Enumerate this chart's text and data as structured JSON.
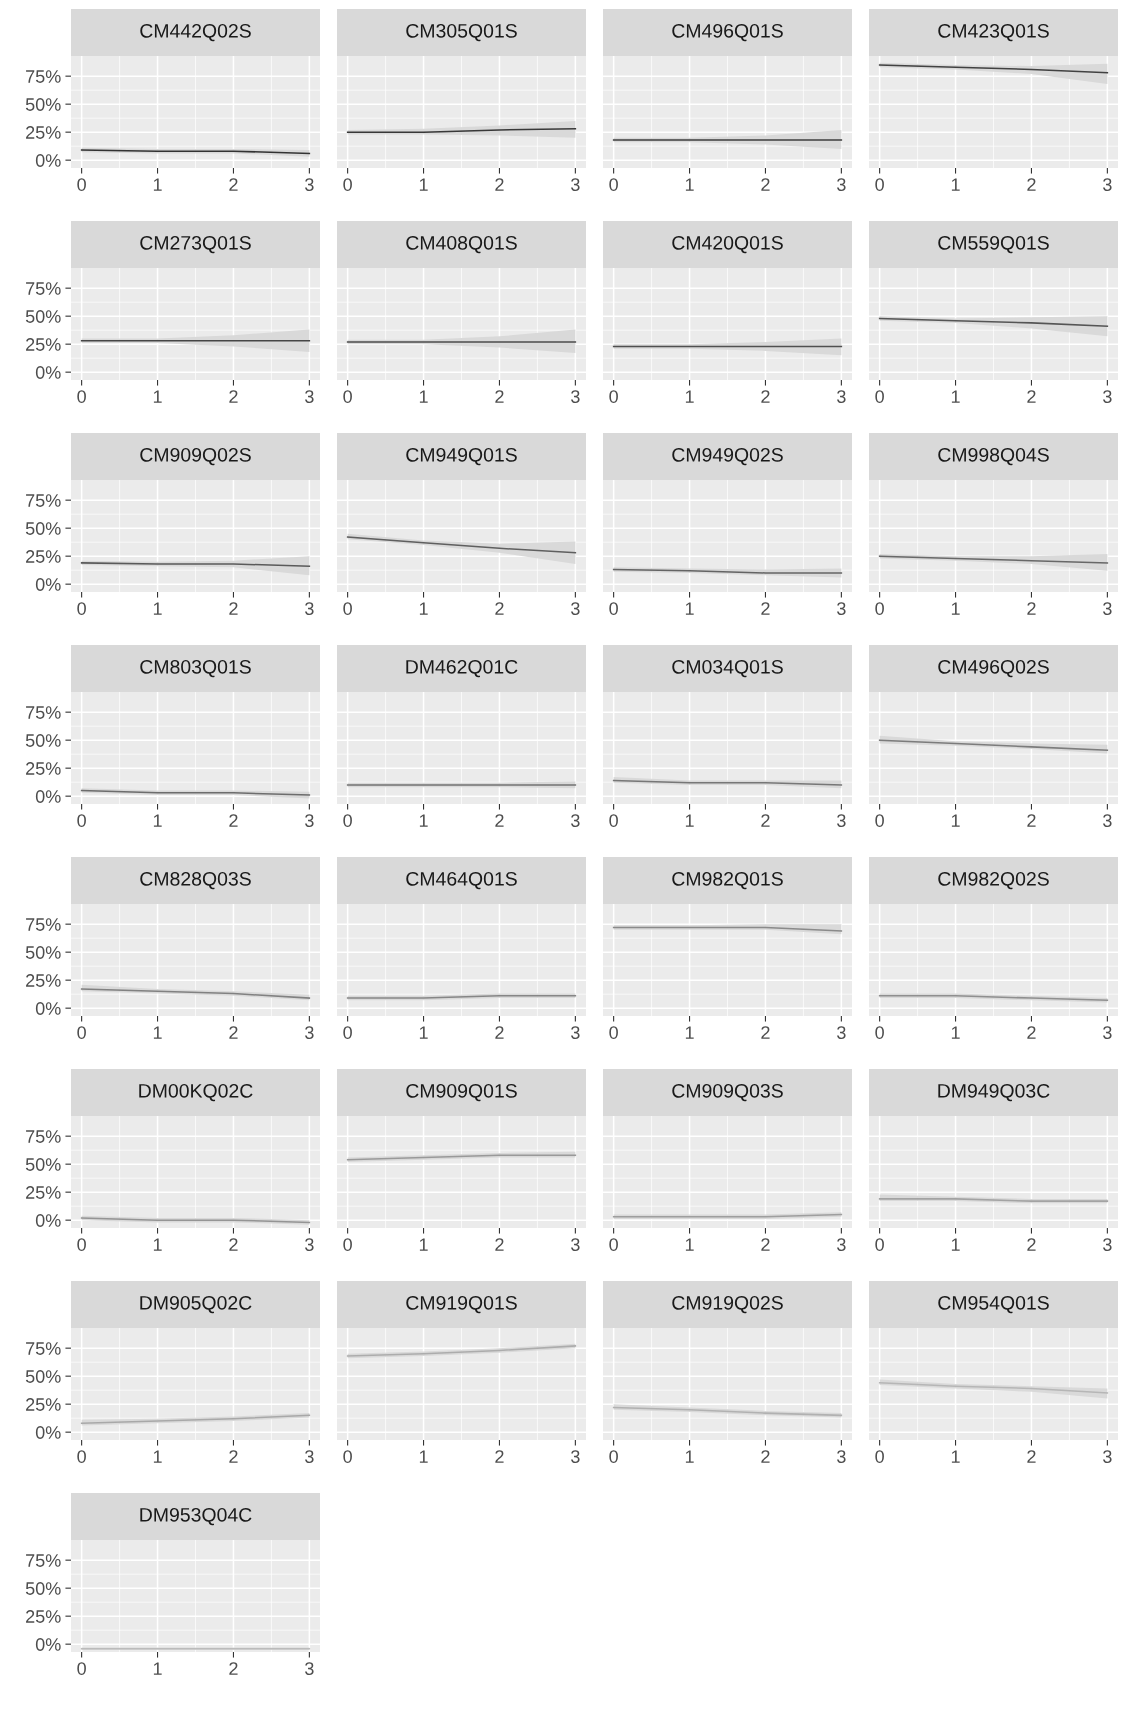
{
  "chart_data": [
    {
      "type": "line",
      "title": "CM442Q02S",
      "x": [
        0,
        1,
        2,
        3
      ],
      "series": [
        {
          "color": "#333333",
          "values": [
            0.09,
            0.08,
            0.08,
            0.06
          ],
          "lower": [
            0.07,
            0.06,
            0.06,
            0.03
          ],
          "upper": [
            0.11,
            0.1,
            0.1,
            0.09
          ]
        }
      ],
      "xlim": [
        -0.14,
        3.14
      ],
      "ylim": [
        -0.07,
        0.93
      ],
      "xticks": [
        0,
        1,
        2,
        3
      ],
      "yticks": [
        {
          "value": 0,
          "label": "0%"
        },
        {
          "value": 0.25,
          "label": "25%"
        },
        {
          "value": 0.5,
          "label": "50%"
        },
        {
          "value": 0.75,
          "label": "75%"
        }
      ],
      "grid": true
    },
    {
      "type": "line",
      "title": "CM305Q01S",
      "x": [
        0,
        1,
        2,
        3
      ],
      "series": [
        {
          "color": "#383838",
          "values": [
            0.25,
            0.25,
            0.27,
            0.28
          ],
          "lower": [
            0.23,
            0.23,
            0.22,
            0.2
          ],
          "upper": [
            0.27,
            0.28,
            0.31,
            0.35
          ]
        }
      ],
      "xlim": [
        -0.14,
        3.14
      ],
      "ylim": [
        -0.07,
        0.93
      ],
      "xticks": [
        0,
        1,
        2,
        3
      ],
      "yticks": [
        0,
        0.25,
        0.5,
        0.75
      ],
      "grid": true,
      "tick_labels": "x"
    },
    {
      "type": "line",
      "title": "CM496Q01S",
      "x": [
        0,
        1,
        2,
        3
      ],
      "series": [
        {
          "color": "#3d3d3d",
          "values": [
            0.18,
            0.18,
            0.18,
            0.18
          ],
          "lower": [
            0.16,
            0.16,
            0.14,
            0.1
          ],
          "upper": [
            0.2,
            0.2,
            0.22,
            0.27
          ]
        }
      ],
      "xlim": [
        -0.14,
        3.14
      ],
      "ylim": [
        -0.07,
        0.93
      ],
      "xticks": [
        0,
        1,
        2,
        3
      ],
      "yticks": [
        0,
        0.25,
        0.5,
        0.75
      ],
      "grid": true,
      "tick_labels": "x"
    },
    {
      "type": "line",
      "title": "CM423Q01S",
      "x": [
        0,
        1,
        2,
        3
      ],
      "series": [
        {
          "color": "#424242",
          "values": [
            0.85,
            0.83,
            0.81,
            0.78
          ],
          "lower": [
            0.83,
            0.81,
            0.77,
            0.68
          ],
          "upper": [
            0.87,
            0.85,
            0.84,
            0.86
          ]
        }
      ],
      "xlim": [
        -0.14,
        3.14
      ],
      "ylim": [
        -0.07,
        0.93
      ],
      "xticks": [
        0,
        1,
        2,
        3
      ],
      "yticks": [
        0,
        0.25,
        0.5,
        0.75
      ],
      "grid": true,
      "tick_labels": "x"
    },
    {
      "type": "line",
      "title": "CM273Q01S",
      "x": [
        0,
        1,
        2,
        3
      ],
      "series": [
        {
          "color": "#464646",
          "values": [
            0.28,
            0.28,
            0.28,
            0.28
          ],
          "lower": [
            0.26,
            0.26,
            0.23,
            0.18
          ],
          "upper": [
            0.3,
            0.3,
            0.33,
            0.38
          ]
        }
      ],
      "xlim": [
        -0.14,
        3.14
      ],
      "ylim": [
        -0.07,
        0.93
      ],
      "xticks": [
        0,
        1,
        2,
        3
      ],
      "yticks": [
        {
          "value": 0,
          "label": "0%"
        },
        {
          "value": 0.25,
          "label": "25%"
        },
        {
          "value": 0.5,
          "label": "50%"
        },
        {
          "value": 0.75,
          "label": "75%"
        }
      ],
      "grid": true
    },
    {
      "type": "line",
      "title": "CM408Q01S",
      "x": [
        0,
        1,
        2,
        3
      ],
      "series": [
        {
          "color": "#4b4b4b",
          "values": [
            0.27,
            0.27,
            0.27,
            0.27
          ],
          "lower": [
            0.25,
            0.25,
            0.22,
            0.17
          ],
          "upper": [
            0.29,
            0.29,
            0.32,
            0.38
          ]
        }
      ],
      "xlim": [
        -0.14,
        3.14
      ],
      "ylim": [
        -0.07,
        0.93
      ],
      "xticks": [
        0,
        1,
        2,
        3
      ],
      "yticks": [
        0,
        0.25,
        0.5,
        0.75
      ],
      "grid": true,
      "tick_labels": "x"
    },
    {
      "type": "line",
      "title": "CM420Q01S",
      "x": [
        0,
        1,
        2,
        3
      ],
      "series": [
        {
          "color": "#505050",
          "values": [
            0.23,
            0.23,
            0.23,
            0.23
          ],
          "lower": [
            0.21,
            0.21,
            0.19,
            0.15
          ],
          "upper": [
            0.25,
            0.25,
            0.27,
            0.3
          ]
        }
      ],
      "xlim": [
        -0.14,
        3.14
      ],
      "ylim": [
        -0.07,
        0.93
      ],
      "xticks": [
        0,
        1,
        2,
        3
      ],
      "yticks": [
        0,
        0.25,
        0.5,
        0.75
      ],
      "grid": true,
      "tick_labels": "x"
    },
    {
      "type": "line",
      "title": "CM559Q01S",
      "x": [
        0,
        1,
        2,
        3
      ],
      "series": [
        {
          "color": "#555555",
          "values": [
            0.48,
            0.46,
            0.44,
            0.41
          ],
          "lower": [
            0.46,
            0.44,
            0.39,
            0.32
          ],
          "upper": [
            0.5,
            0.48,
            0.49,
            0.5
          ]
        }
      ],
      "xlim": [
        -0.14,
        3.14
      ],
      "ylim": [
        -0.07,
        0.93
      ],
      "xticks": [
        0,
        1,
        2,
        3
      ],
      "yticks": [
        0,
        0.25,
        0.5,
        0.75
      ],
      "grid": true,
      "tick_labels": "x"
    },
    {
      "type": "line",
      "title": "CM909Q02S",
      "x": [
        0,
        1,
        2,
        3
      ],
      "series": [
        {
          "color": "#5a5a5a",
          "values": [
            0.19,
            0.18,
            0.18,
            0.16
          ],
          "lower": [
            0.17,
            0.16,
            0.15,
            0.08
          ],
          "upper": [
            0.21,
            0.2,
            0.21,
            0.25
          ]
        }
      ],
      "xlim": [
        -0.14,
        3.14
      ],
      "ylim": [
        -0.07,
        0.93
      ],
      "xticks": [
        0,
        1,
        2,
        3
      ],
      "yticks": [
        {
          "value": 0,
          "label": "0%"
        },
        {
          "value": 0.25,
          "label": "25%"
        },
        {
          "value": 0.5,
          "label": "50%"
        },
        {
          "value": 0.75,
          "label": "75%"
        }
      ],
      "grid": true
    },
    {
      "type": "line",
      "title": "CM949Q01S",
      "x": [
        0,
        1,
        2,
        3
      ],
      "series": [
        {
          "color": "#5f5f5f",
          "values": [
            0.42,
            0.37,
            0.32,
            0.28
          ],
          "lower": [
            0.4,
            0.35,
            0.28,
            0.18
          ],
          "upper": [
            0.45,
            0.39,
            0.36,
            0.38
          ]
        }
      ],
      "xlim": [
        -0.14,
        3.14
      ],
      "ylim": [
        -0.07,
        0.93
      ],
      "xticks": [
        0,
        1,
        2,
        3
      ],
      "yticks": [
        0,
        0.25,
        0.5,
        0.75
      ],
      "grid": true,
      "tick_labels": "x"
    },
    {
      "type": "line",
      "title": "CM949Q02S",
      "x": [
        0,
        1,
        2,
        3
      ],
      "series": [
        {
          "color": "#646464",
          "values": [
            0.13,
            0.12,
            0.1,
            0.1
          ],
          "lower": [
            0.11,
            0.1,
            0.08,
            0.06
          ],
          "upper": [
            0.15,
            0.14,
            0.13,
            0.14
          ]
        }
      ],
      "xlim": [
        -0.14,
        3.14
      ],
      "ylim": [
        -0.07,
        0.93
      ],
      "xticks": [
        0,
        1,
        2,
        3
      ],
      "yticks": [
        0,
        0.25,
        0.5,
        0.75
      ],
      "grid": true,
      "tick_labels": "x"
    },
    {
      "type": "line",
      "title": "CM998Q04S",
      "x": [
        0,
        1,
        2,
        3
      ],
      "series": [
        {
          "color": "#686868",
          "values": [
            0.25,
            0.23,
            0.21,
            0.19
          ],
          "lower": [
            0.23,
            0.21,
            0.18,
            0.12
          ],
          "upper": [
            0.27,
            0.25,
            0.25,
            0.27
          ]
        }
      ],
      "xlim": [
        -0.14,
        3.14
      ],
      "ylim": [
        -0.07,
        0.93
      ],
      "xticks": [
        0,
        1,
        2,
        3
      ],
      "yticks": [
        0,
        0.25,
        0.5,
        0.75
      ],
      "grid": true,
      "tick_labels": "x"
    },
    {
      "type": "line",
      "title": "CM803Q01S",
      "x": [
        0,
        1,
        2,
        3
      ],
      "series": [
        {
          "color": "#6d6d6d",
          "values": [
            0.05,
            0.03,
            0.03,
            0.01
          ],
          "lower": [
            0.03,
            0.01,
            0.01,
            -0.02
          ],
          "upper": [
            0.07,
            0.05,
            0.05,
            0.04
          ]
        }
      ],
      "xlim": [
        -0.14,
        3.14
      ],
      "ylim": [
        -0.07,
        0.93
      ],
      "xticks": [
        0,
        1,
        2,
        3
      ],
      "yticks": [
        {
          "value": 0,
          "label": "0%"
        },
        {
          "value": 0.25,
          "label": "25%"
        },
        {
          "value": 0.5,
          "label": "50%"
        },
        {
          "value": 0.75,
          "label": "75%"
        }
      ],
      "grid": true
    },
    {
      "type": "line",
      "title": "DM462Q01C",
      "x": [
        0,
        1,
        2,
        3
      ],
      "series": [
        {
          "color": "#727272",
          "values": [
            0.1,
            0.1,
            0.1,
            0.1
          ],
          "lower": [
            0.08,
            0.08,
            0.08,
            0.07
          ],
          "upper": [
            0.12,
            0.12,
            0.12,
            0.13
          ]
        }
      ],
      "xlim": [
        -0.14,
        3.14
      ],
      "ylim": [
        -0.07,
        0.93
      ],
      "xticks": [
        0,
        1,
        2,
        3
      ],
      "yticks": [
        0,
        0.25,
        0.5,
        0.75
      ],
      "grid": true,
      "tick_labels": "x"
    },
    {
      "type": "line",
      "title": "CM034Q01S",
      "x": [
        0,
        1,
        2,
        3
      ],
      "series": [
        {
          "color": "#777777",
          "values": [
            0.14,
            0.12,
            0.12,
            0.1
          ],
          "lower": [
            0.12,
            0.1,
            0.1,
            0.07
          ],
          "upper": [
            0.17,
            0.14,
            0.14,
            0.14
          ]
        }
      ],
      "xlim": [
        -0.14,
        3.14
      ],
      "ylim": [
        -0.07,
        0.93
      ],
      "xticks": [
        0,
        1,
        2,
        3
      ],
      "yticks": [
        0,
        0.25,
        0.5,
        0.75
      ],
      "grid": true,
      "tick_labels": "x"
    },
    {
      "type": "line",
      "title": "CM496Q02S",
      "x": [
        0,
        1,
        2,
        3
      ],
      "series": [
        {
          "color": "#7c7c7c",
          "values": [
            0.5,
            0.47,
            0.44,
            0.41
          ],
          "lower": [
            0.47,
            0.45,
            0.42,
            0.38
          ],
          "upper": [
            0.54,
            0.49,
            0.47,
            0.46
          ]
        }
      ],
      "xlim": [
        -0.14,
        3.14
      ],
      "ylim": [
        -0.07,
        0.93
      ],
      "xticks": [
        0,
        1,
        2,
        3
      ],
      "yticks": [
        0,
        0.25,
        0.5,
        0.75
      ],
      "grid": true,
      "tick_labels": "x"
    },
    {
      "type": "line",
      "title": "CM828Q03S",
      "x": [
        0,
        1,
        2,
        3
      ],
      "series": [
        {
          "color": "#818181",
          "values": [
            0.17,
            0.15,
            0.13,
            0.09
          ],
          "lower": [
            0.15,
            0.13,
            0.11,
            0.07
          ],
          "upper": [
            0.21,
            0.17,
            0.15,
            0.12
          ]
        }
      ],
      "xlim": [
        -0.14,
        3.14
      ],
      "ylim": [
        -0.07,
        0.93
      ],
      "xticks": [
        0,
        1,
        2,
        3
      ],
      "yticks": [
        {
          "value": 0,
          "label": "0%"
        },
        {
          "value": 0.25,
          "label": "25%"
        },
        {
          "value": 0.5,
          "label": "50%"
        },
        {
          "value": 0.75,
          "label": "75%"
        }
      ],
      "grid": true
    },
    {
      "type": "line",
      "title": "CM464Q01S",
      "x": [
        0,
        1,
        2,
        3
      ],
      "series": [
        {
          "color": "#868686",
          "values": [
            0.09,
            0.09,
            0.11,
            0.11
          ],
          "lower": [
            0.07,
            0.07,
            0.09,
            0.09
          ],
          "upper": [
            0.11,
            0.11,
            0.13,
            0.13
          ]
        }
      ],
      "xlim": [
        -0.14,
        3.14
      ],
      "ylim": [
        -0.07,
        0.93
      ],
      "xticks": [
        0,
        1,
        2,
        3
      ],
      "yticks": [
        0,
        0.25,
        0.5,
        0.75
      ],
      "grid": true,
      "tick_labels": "x"
    },
    {
      "type": "line",
      "title": "CM982Q01S",
      "x": [
        0,
        1,
        2,
        3
      ],
      "series": [
        {
          "color": "#8a8a8a",
          "values": [
            0.72,
            0.72,
            0.72,
            0.69
          ],
          "lower": [
            0.7,
            0.7,
            0.7,
            0.66
          ],
          "upper": [
            0.74,
            0.74,
            0.75,
            0.75
          ]
        }
      ],
      "xlim": [
        -0.14,
        3.14
      ],
      "ylim": [
        -0.07,
        0.93
      ],
      "xticks": [
        0,
        1,
        2,
        3
      ],
      "yticks": [
        0,
        0.25,
        0.5,
        0.75
      ],
      "grid": true,
      "tick_labels": "x"
    },
    {
      "type": "line",
      "title": "CM982Q02S",
      "x": [
        0,
        1,
        2,
        3
      ],
      "series": [
        {
          "color": "#8f8f8f",
          "values": [
            0.11,
            0.11,
            0.09,
            0.07
          ],
          "lower": [
            0.09,
            0.09,
            0.07,
            0.05
          ],
          "upper": [
            0.13,
            0.13,
            0.11,
            0.09
          ]
        }
      ],
      "xlim": [
        -0.14,
        3.14
      ],
      "ylim": [
        -0.07,
        0.93
      ],
      "xticks": [
        0,
        1,
        2,
        3
      ],
      "yticks": [
        0,
        0.25,
        0.5,
        0.75
      ],
      "grid": true,
      "tick_labels": "x"
    },
    {
      "type": "line",
      "title": "DM00KQ02C",
      "x": [
        0,
        1,
        2,
        3
      ],
      "series": [
        {
          "color": "#949494",
          "values": [
            0.02,
            0.0,
            0.0,
            -0.02
          ],
          "lower": [
            0.0,
            -0.02,
            -0.02,
            -0.04
          ],
          "upper": [
            0.04,
            0.02,
            0.02,
            0.0
          ]
        }
      ],
      "xlim": [
        -0.14,
        3.14
      ],
      "ylim": [
        -0.07,
        0.93
      ],
      "xticks": [
        0,
        1,
        2,
        3
      ],
      "yticks": [
        {
          "value": 0,
          "label": "0%"
        },
        {
          "value": 0.25,
          "label": "25%"
        },
        {
          "value": 0.5,
          "label": "50%"
        },
        {
          "value": 0.75,
          "label": "75%"
        }
      ],
      "grid": true
    },
    {
      "type": "line",
      "title": "CM909Q01S",
      "x": [
        0,
        1,
        2,
        3
      ],
      "series": [
        {
          "color": "#999999",
          "values": [
            0.54,
            0.56,
            0.58,
            0.58
          ],
          "lower": [
            0.52,
            0.54,
            0.56,
            0.56
          ],
          "upper": [
            0.56,
            0.58,
            0.6,
            0.61
          ]
        }
      ],
      "xlim": [
        -0.14,
        3.14
      ],
      "ylim": [
        -0.07,
        0.93
      ],
      "xticks": [
        0,
        1,
        2,
        3
      ],
      "yticks": [
        0,
        0.25,
        0.5,
        0.75
      ],
      "grid": true,
      "tick_labels": "x"
    },
    {
      "type": "line",
      "title": "CM909Q03S",
      "x": [
        0,
        1,
        2,
        3
      ],
      "series": [
        {
          "color": "#9e9e9e",
          "values": [
            0.03,
            0.03,
            0.03,
            0.05
          ],
          "lower": [
            0.01,
            0.01,
            0.01,
            0.03
          ],
          "upper": [
            0.05,
            0.05,
            0.05,
            0.07
          ]
        }
      ],
      "xlim": [
        -0.14,
        3.14
      ],
      "ylim": [
        -0.07,
        0.93
      ],
      "xticks": [
        0,
        1,
        2,
        3
      ],
      "yticks": [
        0,
        0.25,
        0.5,
        0.75
      ],
      "grid": true,
      "tick_labels": "x"
    },
    {
      "type": "line",
      "title": "DM949Q03C",
      "x": [
        0,
        1,
        2,
        3
      ],
      "series": [
        {
          "color": "#a3a3a3",
          "values": [
            0.19,
            0.19,
            0.17,
            0.17
          ],
          "lower": [
            0.17,
            0.17,
            0.15,
            0.15
          ],
          "upper": [
            0.23,
            0.21,
            0.19,
            0.19
          ]
        }
      ],
      "xlim": [
        -0.14,
        3.14
      ],
      "ylim": [
        -0.07,
        0.93
      ],
      "xticks": [
        0,
        1,
        2,
        3
      ],
      "yticks": [
        0,
        0.25,
        0.5,
        0.75
      ],
      "grid": true,
      "tick_labels": "x"
    },
    {
      "type": "line",
      "title": "DM905Q02C",
      "x": [
        0,
        1,
        2,
        3
      ],
      "series": [
        {
          "color": "#a8a8a8",
          "values": [
            0.08,
            0.1,
            0.12,
            0.15
          ],
          "lower": [
            0.06,
            0.08,
            0.1,
            0.13
          ],
          "upper": [
            0.11,
            0.12,
            0.14,
            0.17
          ]
        }
      ],
      "xlim": [
        -0.14,
        3.14
      ],
      "ylim": [
        -0.07,
        0.93
      ],
      "xticks": [
        0,
        1,
        2,
        3
      ],
      "yticks": [
        {
          "value": 0,
          "label": "0%"
        },
        {
          "value": 0.25,
          "label": "25%"
        },
        {
          "value": 0.5,
          "label": "50%"
        },
        {
          "value": 0.75,
          "label": "75%"
        }
      ],
      "grid": true
    },
    {
      "type": "line",
      "title": "CM919Q01S",
      "x": [
        0,
        1,
        2,
        3
      ],
      "series": [
        {
          "color": "#acacac",
          "values": [
            0.68,
            0.7,
            0.73,
            0.77
          ],
          "lower": [
            0.66,
            0.68,
            0.71,
            0.75
          ],
          "upper": [
            0.7,
            0.72,
            0.75,
            0.79
          ]
        }
      ],
      "xlim": [
        -0.14,
        3.14
      ],
      "ylim": [
        -0.07,
        0.93
      ],
      "xticks": [
        0,
        1,
        2,
        3
      ],
      "yticks": [
        0,
        0.25,
        0.5,
        0.75
      ],
      "grid": true,
      "tick_labels": "x"
    },
    {
      "type": "line",
      "title": "CM919Q02S",
      "x": [
        0,
        1,
        2,
        3
      ],
      "series": [
        {
          "color": "#b1b1b1",
          "values": [
            0.22,
            0.2,
            0.17,
            0.15
          ],
          "lower": [
            0.2,
            0.18,
            0.15,
            0.13
          ],
          "upper": [
            0.25,
            0.22,
            0.19,
            0.17
          ]
        }
      ],
      "xlim": [
        -0.14,
        3.14
      ],
      "ylim": [
        -0.07,
        0.93
      ],
      "xticks": [
        0,
        1,
        2,
        3
      ],
      "yticks": [
        0,
        0.25,
        0.5,
        0.75
      ],
      "grid": true,
      "tick_labels": "x"
    },
    {
      "type": "line",
      "title": "CM954Q01S",
      "x": [
        0,
        1,
        2,
        3
      ],
      "series": [
        {
          "color": "#b6b6b6",
          "values": [
            0.44,
            0.41,
            0.39,
            0.35
          ],
          "lower": [
            0.42,
            0.39,
            0.36,
            0.3
          ],
          "upper": [
            0.47,
            0.43,
            0.41,
            0.39
          ]
        }
      ],
      "xlim": [
        -0.14,
        3.14
      ],
      "ylim": [
        -0.07,
        0.93
      ],
      "xticks": [
        0,
        1,
        2,
        3
      ],
      "yticks": [
        0,
        0.25,
        0.5,
        0.75
      ],
      "grid": true,
      "tick_labels": "x"
    },
    {
      "type": "line",
      "title": "DM953Q04C",
      "x": [
        0,
        1,
        2,
        3
      ],
      "series": [
        {
          "color": "#bbbbbb",
          "values": [
            -0.04,
            -0.04,
            -0.04,
            -0.04
          ],
          "lower": [
            -0.05,
            -0.05,
            -0.05,
            -0.05
          ],
          "upper": [
            -0.03,
            -0.03,
            -0.03,
            -0.03
          ]
        }
      ],
      "xlim": [
        -0.14,
        3.14
      ],
      "ylim": [
        -0.07,
        0.93
      ],
      "xticks": [
        0,
        1,
        2,
        3
      ],
      "yticks": [
        {
          "value": 0,
          "label": "0%"
        },
        {
          "value": 0.25,
          "label": "25%"
        },
        {
          "value": 0.5,
          "label": "50%"
        },
        {
          "value": 0.75,
          "label": "75%"
        }
      ],
      "grid": true
    }
  ]
}
